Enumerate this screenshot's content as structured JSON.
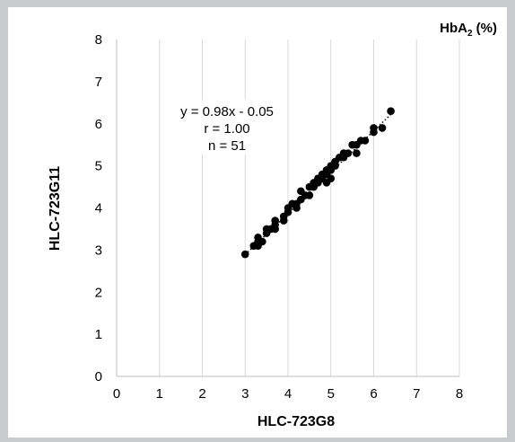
{
  "chart_data": {
    "type": "scatter",
    "title_main": "HbA",
    "title_sub": "2",
    "title_suffix": " (%)",
    "xlabel": "HLC-723G8",
    "ylabel": "HLC-723G11",
    "xlim": [
      0,
      8
    ],
    "ylim": [
      0,
      8
    ],
    "xticks": [
      "0",
      "1",
      "2",
      "3",
      "4",
      "5",
      "6",
      "7",
      "8"
    ],
    "yticks": [
      "0",
      "1",
      "2",
      "3",
      "4",
      "5",
      "6",
      "7",
      "8"
    ],
    "grid": "vertical",
    "annotation": [
      "y = 0.98x - 0.05",
      "r = 1.00",
      "n = 51"
    ],
    "trendline": {
      "slope": 0.98,
      "intercept": -0.05,
      "x_range": [
        3.0,
        6.4
      ],
      "style": "dotted"
    },
    "marker_color": "#000000",
    "series": [
      {
        "x": [
          3.0,
          3.2,
          3.3,
          3.3,
          3.3,
          3.4,
          3.5,
          3.5,
          3.6,
          3.7,
          3.7,
          3.7,
          3.9,
          3.9,
          4.0,
          4.0,
          4.1,
          4.2,
          4.2,
          4.3,
          4.3,
          4.4,
          4.5,
          4.5,
          4.6,
          4.6,
          4.7,
          4.7,
          4.8,
          4.8,
          4.9,
          4.9,
          4.9,
          5.0,
          5.0,
          5.0,
          5.1,
          5.1,
          5.2,
          5.3,
          5.3,
          5.4,
          5.5,
          5.6,
          5.6,
          5.7,
          5.8,
          6.0,
          6.0,
          6.2,
          6.4
        ],
        "y": [
          2.9,
          3.1,
          3.1,
          3.2,
          3.3,
          3.2,
          3.4,
          3.5,
          3.5,
          3.6,
          3.7,
          3.5,
          3.8,
          3.7,
          3.9,
          4.0,
          4.1,
          4.1,
          4.0,
          4.2,
          4.4,
          4.3,
          4.3,
          4.5,
          4.5,
          4.6,
          4.6,
          4.7,
          4.7,
          4.8,
          4.6,
          4.8,
          4.9,
          4.7,
          4.9,
          5.0,
          5.0,
          5.1,
          5.2,
          5.2,
          5.3,
          5.3,
          5.5,
          5.3,
          5.5,
          5.6,
          5.6,
          5.8,
          5.9,
          5.9,
          6.3
        ]
      }
    ]
  }
}
